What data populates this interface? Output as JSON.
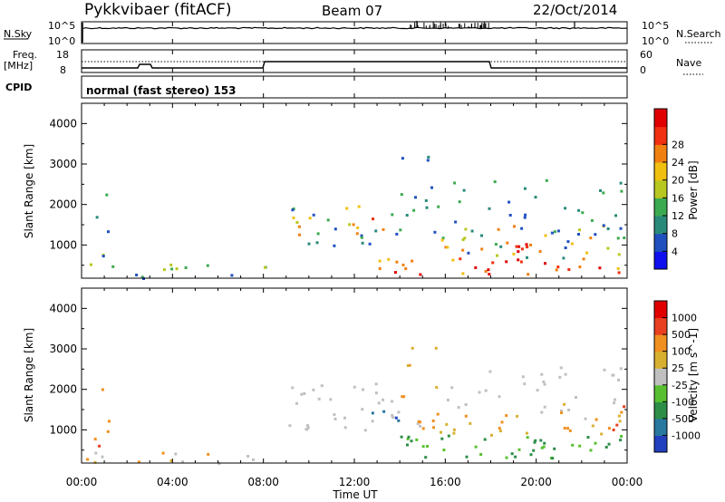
{
  "header": {
    "title": "Pykkvibaer (fitACF)",
    "beam": "Beam 07",
    "date": "22/Oct/2014"
  },
  "nsky_panel": {
    "left_label": "N.Sky",
    "right_label": "N.Search",
    "left_ticks": [
      "10^5",
      "10^0"
    ],
    "right_ticks": [
      "10^5",
      "10^0"
    ]
  },
  "freq_panel": {
    "left_label_line1": "Freq.",
    "left_label_line2": "[MHz]",
    "right_label": "Nave",
    "left_ticks": [
      "18",
      "8"
    ],
    "right_ticks": [
      "60",
      "0"
    ]
  },
  "cpid_panel": {
    "label": "CPID",
    "mode_text": "normal (fast stereo) 153"
  },
  "chart_data": [
    {
      "type": "heatmap",
      "name": "power",
      "ylabel": "Slant Range [km]",
      "ylim": [
        180,
        4500
      ],
      "yticks": [
        1000,
        2000,
        3000,
        4000
      ],
      "xlim": [
        0,
        24
      ],
      "colorbar_label": "Power [dB]",
      "colorbar_ticks": [
        "4",
        "8",
        "12",
        "16",
        "20",
        "24",
        "28"
      ],
      "colorbar_colors": [
        "#1010ee",
        "#2050c0",
        "#2a8a7a",
        "#3caa50",
        "#b8c820",
        "#f0c010",
        "#f08010",
        "#f03010",
        "#e00000"
      ],
      "grid": false
    },
    {
      "type": "heatmap",
      "name": "velocity",
      "ylabel": "Slant Range [km]",
      "ylim": [
        180,
        4500
      ],
      "yticks": [
        1000,
        2000,
        3000,
        4000
      ],
      "xlim": [
        0,
        24
      ],
      "colorbar_label": "Velocity [m s^-1]",
      "colorbar_ticks": [
        "1000",
        "500",
        "100",
        "25",
        "-25",
        "-100",
        "-500",
        "-1000"
      ],
      "colorbar_colors": [
        "#2040c0",
        "#2878a0",
        "#2e8e48",
        "#58c030",
        "#c0c0c0",
        "#d8b030",
        "#f09020",
        "#e84020",
        "#e00000"
      ],
      "grid": false
    }
  ],
  "xaxis": {
    "label": "Time UT",
    "ticks": [
      "00:00",
      "04:00",
      "08:00",
      "12:00",
      "16:00",
      "20:00",
      "00:00"
    ]
  }
}
